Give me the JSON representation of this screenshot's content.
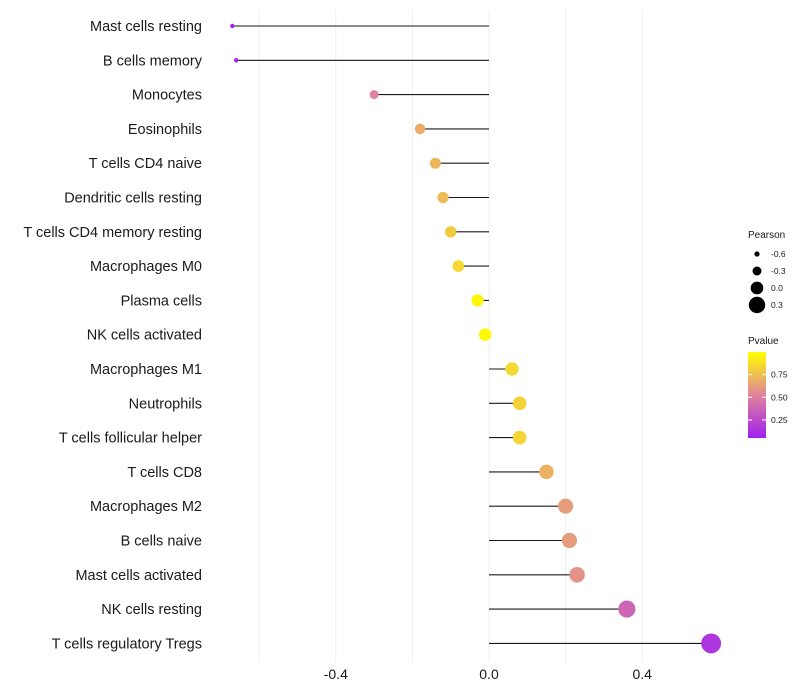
{
  "chart_data": {
    "type": "lollipop",
    "title": "",
    "xlabel": "",
    "ylabel": "",
    "xlim": [
      -0.72,
      0.62
    ],
    "x_ticks": [
      -0.4,
      0.0,
      0.4
    ],
    "x_tick_labels": [
      "-0.4",
      "0.0",
      "0.4"
    ],
    "grid": true,
    "categories": [
      "Mast cells resting",
      "B cells memory",
      "Monocytes",
      "Eosinophils",
      "T cells CD4 naive",
      "Dendritic cells resting",
      "T cells CD4 memory resting",
      "Macrophages M0",
      "Plasma cells",
      "NK cells activated",
      "Macrophages M1",
      "Neutrophils",
      "T cells follicular helper",
      "T cells CD8",
      "Macrophages M2",
      "B cells naive",
      "Mast cells activated",
      "NK cells resting",
      "T cells regulatory  Tregs"
    ],
    "values": [
      -0.67,
      -0.66,
      -0.3,
      -0.18,
      -0.14,
      -0.12,
      -0.1,
      -0.08,
      -0.03,
      -0.01,
      0.06,
      0.08,
      0.08,
      0.15,
      0.2,
      0.21,
      0.23,
      0.36,
      0.58
    ],
    "pvalues": [
      0.05,
      0.08,
      0.52,
      0.68,
      0.72,
      0.74,
      0.8,
      0.85,
      0.97,
      0.98,
      0.85,
      0.83,
      0.84,
      0.7,
      0.62,
      0.62,
      0.58,
      0.38,
      0.15
    ],
    "size_legend": {
      "title": "Pearson",
      "labels": [
        "-0.6",
        "-0.3",
        "0.0",
        "0.3"
      ],
      "values": [
        -0.6,
        -0.3,
        0.0,
        0.3
      ]
    },
    "color_legend": {
      "title": "Pvalue",
      "labels": [
        "0.75",
        "0.50",
        "0.25"
      ],
      "values": [
        0.75,
        0.5,
        0.25
      ],
      "range": [
        0.05,
        1.0
      ],
      "low_color": "#a020f0",
      "mid_color": "#e0849a",
      "high_color": "#ffff00"
    },
    "line_color": "#1a1a1a",
    "grid_color": "#ebebeb"
  }
}
